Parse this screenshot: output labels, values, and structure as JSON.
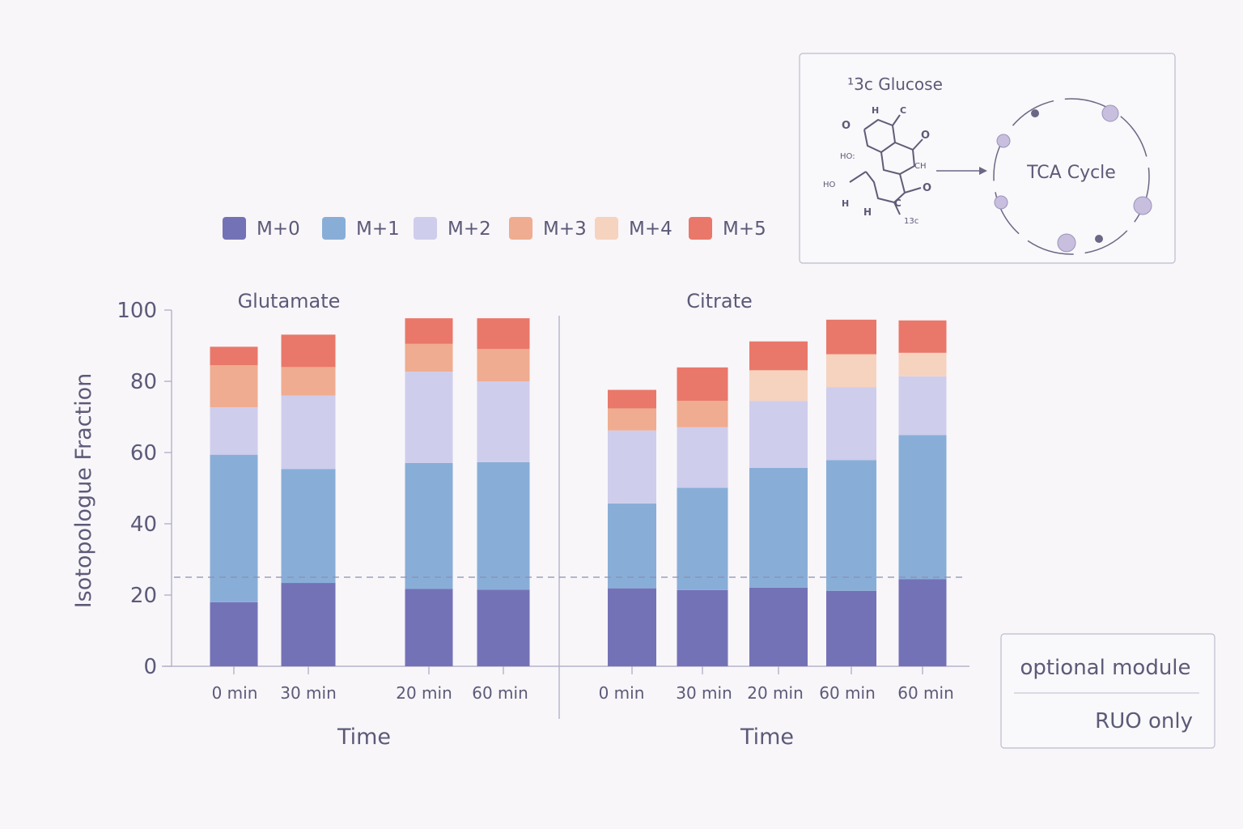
{
  "chart_data": {
    "type": "bar",
    "stacked": true,
    "ylabel": "Isotopologue Fraction",
    "ylim": [
      0,
      100
    ],
    "yticks": [
      "0",
      "20",
      "40",
      "60",
      "80",
      "100"
    ],
    "reference_line": 25,
    "legend": {
      "placement": "top",
      "entries": [
        "M+0",
        "M+1",
        "M+2",
        "M+3",
        "M+4",
        "M+5"
      ],
      "colors": [
        "#7472b6",
        "#88aed8",
        "#cfcdec",
        "#efac90",
        "#f6d3bf",
        "#e9786a"
      ]
    },
    "panels": [
      {
        "title": "Glutamate",
        "xlabel": "Time",
        "categories": [
          "0  min",
          "30 min",
          "20 min",
          "60 min"
        ],
        "series": [
          {
            "name": "M+0",
            "values": [
              18.0,
              23.4,
              21.7,
              21.5
            ]
          },
          {
            "name": "M+1",
            "values": [
              41.4,
              32.0,
              35.4,
              35.8
            ]
          },
          {
            "name": "M+2",
            "values": [
              13.3,
              20.6,
              25.6,
              22.7
            ]
          },
          {
            "name": "M+3",
            "values": [
              11.8,
              8.0,
              7.8,
              9.1
            ]
          },
          {
            "name": "M+4",
            "values": [
              0,
              0,
              0,
              0
            ]
          },
          {
            "name": "M+5",
            "values": [
              5.2,
              9.1,
              7.2,
              8.6
            ]
          }
        ]
      },
      {
        "title": "Citrate",
        "xlabel": "Time",
        "categories": [
          "0  min",
          "30 min",
          "20 min",
          "60 min",
          "60 min"
        ],
        "series": [
          {
            "name": "M+0",
            "values": [
              21.9,
              21.4,
              22.1,
              21.2,
              24.5
            ]
          },
          {
            "name": "M+1",
            "values": [
              23.8,
              28.7,
              33.6,
              36.7,
              40.4
            ]
          },
          {
            "name": "M+2",
            "values": [
              20.5,
              17.0,
              18.8,
              20.4,
              16.5
            ]
          },
          {
            "name": "M+3",
            "values": [
              6.2,
              7.4,
              0,
              0,
              0
            ]
          },
          {
            "name": "M+4",
            "values": [
              0,
              0,
              8.6,
              9.3,
              6.6
            ]
          },
          {
            "name": "M+5",
            "values": [
              5.2,
              9.4,
              8.1,
              9.7,
              9.1
            ]
          }
        ]
      }
    ]
  },
  "inset": {
    "substrate_label": "¹3c Glucose",
    "cycle_label": "TCA Cycle",
    "atom_labels": [
      "H",
      "C",
      "O",
      "O",
      "HO:",
      "CH",
      "HO",
      "O",
      "H",
      "H",
      "C",
      "13c"
    ]
  },
  "note_box": {
    "line1": "optional module",
    "line2": "RUO only"
  }
}
